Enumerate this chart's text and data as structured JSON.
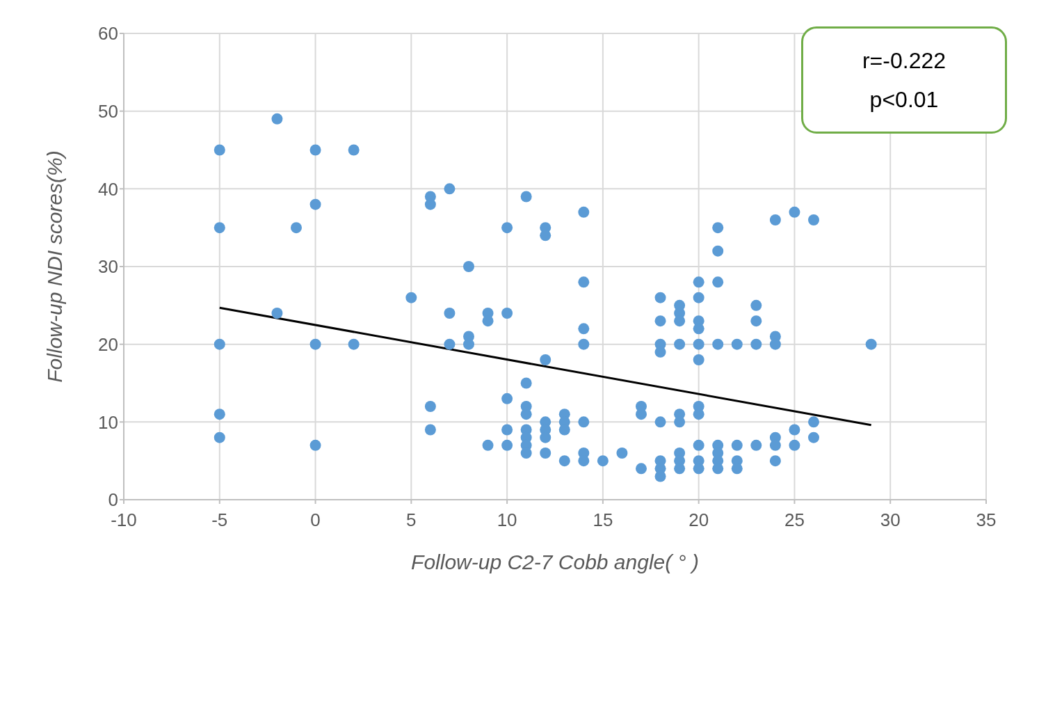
{
  "chart_data": {
    "type": "scatter",
    "xlabel": "Follow-up C2-7 Cobb angle( ° )",
    "ylabel": "Follow-up NDI scores(%)",
    "xlim": [
      -10,
      35
    ],
    "xticks": [
      -10,
      -5,
      0,
      5,
      10,
      15,
      20,
      25,
      30,
      35
    ],
    "ylim": [
      0,
      60
    ],
    "yticks": [
      0,
      10,
      20,
      30,
      40,
      50,
      60
    ],
    "grid": true,
    "annotations": [
      "r=-0.222",
      "p<0.01"
    ],
    "series": [
      {
        "marker": "circle",
        "color": "#5b9bd5",
        "x": [
          -5,
          -5,
          -5,
          -5,
          -5,
          -2,
          -2,
          -1,
          0,
          0,
          0,
          0,
          2,
          2,
          5,
          6,
          6,
          6,
          6,
          7,
          7,
          7,
          8,
          8,
          8,
          9,
          9,
          9,
          10,
          10,
          10,
          10,
          10,
          11,
          11,
          11,
          11,
          11,
          11,
          11,
          11,
          12,
          12,
          12,
          12,
          12,
          12,
          12,
          13,
          13,
          13,
          13,
          14,
          14,
          14,
          14,
          14,
          14,
          14,
          15,
          16,
          17,
          17,
          17,
          18,
          18,
          18,
          18,
          18,
          18,
          18,
          18,
          19,
          19,
          19,
          19,
          19,
          19,
          19,
          19,
          19,
          20,
          20,
          20,
          20,
          20,
          20,
          20,
          20,
          20,
          20,
          20,
          21,
          21,
          21,
          21,
          21,
          21,
          21,
          21,
          22,
          22,
          22,
          22,
          23,
          23,
          23,
          23,
          24,
          24,
          24,
          24,
          24,
          24,
          25,
          25,
          25,
          26,
          26,
          26,
          29
        ],
        "values": [
          45,
          35,
          20,
          11,
          8,
          49,
          24,
          35,
          45,
          38,
          20,
          7,
          45,
          20,
          26,
          39,
          38,
          12,
          9,
          40,
          24,
          20,
          30,
          21,
          20,
          24,
          23,
          7,
          35,
          24,
          13,
          9,
          7,
          39,
          15,
          12,
          11,
          9,
          8,
          7,
          6,
          35,
          34,
          18,
          10,
          9,
          8,
          6,
          11,
          10,
          9,
          5,
          37,
          28,
          22,
          20,
          10,
          6,
          5,
          5,
          6,
          12,
          11,
          4,
          26,
          23,
          20,
          19,
          10,
          5,
          4,
          3,
          25,
          24,
          23,
          20,
          11,
          10,
          6,
          5,
          4,
          28,
          26,
          23,
          22,
          20,
          18,
          12,
          11,
          7,
          5,
          4,
          35,
          32,
          28,
          20,
          7,
          6,
          5,
          4,
          20,
          7,
          5,
          4,
          25,
          23,
          20,
          7,
          36,
          21,
          20,
          8,
          7,
          5,
          37,
          9,
          7,
          36,
          10,
          8,
          20
        ]
      },
      {
        "type": "line",
        "marker": "none",
        "color": "#000000",
        "x": [
          -5,
          29
        ],
        "values": [
          24.7,
          9.6
        ]
      }
    ]
  }
}
